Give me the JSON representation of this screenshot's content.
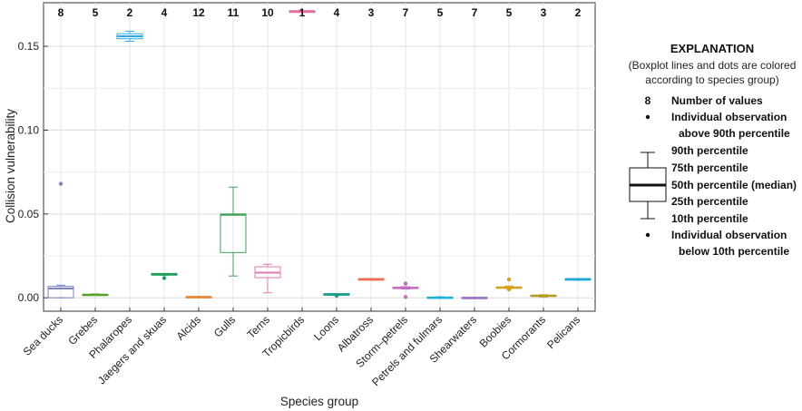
{
  "chart_data": {
    "type": "box",
    "ylabel": "Collision vulnerability",
    "xlabel": "Species group",
    "ylim": [
      -0.008,
      0.176
    ],
    "yticks": [
      0.0,
      0.05,
      0.1,
      0.15
    ],
    "ytick_labels": [
      "0.00",
      "0.05",
      "0.10",
      "0.15"
    ],
    "grid": true,
    "groups": [
      {
        "name": "Sea ducks",
        "n": "8",
        "color": "#7b83c9",
        "p10": 0.0,
        "q1": 0.0,
        "median": 0.0055,
        "q3": 0.0068,
        "p90": 0.0075,
        "outliers": [
          0.068
        ]
      },
      {
        "name": "Grebes",
        "n": "5",
        "color": "#5aa02c",
        "p10": 0.0015,
        "q1": 0.0015,
        "median": 0.0018,
        "q3": 0.0021,
        "p90": 0.0023,
        "outliers": []
      },
      {
        "name": "Phalaropes",
        "n": "2",
        "color": "#29a9e0",
        "p10": 0.153,
        "q1": 0.1545,
        "median": 0.156,
        "q3": 0.1575,
        "p90": 0.159,
        "outliers": []
      },
      {
        "name": "Jaegers and skuas",
        "n": "4",
        "color": "#1f9e5a",
        "p10": 0.0135,
        "q1": 0.0135,
        "median": 0.014,
        "q3": 0.0145,
        "p90": 0.0145,
        "outliers": [
          0.0118
        ]
      },
      {
        "name": "Alcids",
        "n": "12",
        "color": "#e8893a",
        "p10": 0.0004,
        "q1": 0.0005,
        "median": 0.0006,
        "q3": 0.0007,
        "p90": 0.0008,
        "outliers": []
      },
      {
        "name": "Gulls",
        "n": "11",
        "color": "#3aa35a",
        "p10": 0.013,
        "q1": 0.027,
        "median": 0.0495,
        "q3": 0.05,
        "p90": 0.066,
        "outliers": []
      },
      {
        "name": "Terns",
        "n": "10",
        "color": "#e07ab0",
        "p10": 0.003,
        "q1": 0.012,
        "median": 0.015,
        "q3": 0.0185,
        "p90": 0.02,
        "outliers": []
      },
      {
        "name": "Tropicbirds",
        "n": "1",
        "color": "#e8669e",
        "p10": 0.171,
        "q1": 0.171,
        "median": 0.171,
        "q3": 0.171,
        "p90": 0.171,
        "outliers": []
      },
      {
        "name": "Loons",
        "n": "4",
        "color": "#1a9e8f",
        "p10": 0.0015,
        "q1": 0.0015,
        "median": 0.002,
        "q3": 0.0025,
        "p90": 0.0025,
        "outliers": [
          0.0012
        ]
      },
      {
        "name": "Albatross",
        "n": "3",
        "color": "#ef6c5a",
        "p10": 0.0105,
        "q1": 0.0105,
        "median": 0.011,
        "q3": 0.0115,
        "p90": 0.0115,
        "outliers": []
      },
      {
        "name": "Storm–petrels",
        "n": "7",
        "color": "#c66bc2",
        "p10": 0.0052,
        "q1": 0.0055,
        "median": 0.006,
        "q3": 0.0063,
        "p90": 0.0066,
        "outliers": [
          0.0085,
          0.0005
        ]
      },
      {
        "name": "Petrels and fulmars",
        "n": "5",
        "color": "#1fb2d8",
        "p10": 0.0,
        "q1": 0.0,
        "median": 0.0002,
        "q3": 0.0004,
        "p90": 0.0006,
        "outliers": []
      },
      {
        "name": "Shearwaters",
        "n": "7",
        "color": "#a07ac9",
        "p10": 0.0,
        "q1": 0.0,
        "median": 0.0001,
        "q3": 0.0002,
        "p90": 0.0003,
        "outliers": []
      },
      {
        "name": "Boobies",
        "n": "5",
        "color": "#d4a11e",
        "p10": 0.0055,
        "q1": 0.0058,
        "median": 0.006,
        "q3": 0.0065,
        "p90": 0.007,
        "outliers": [
          0.011,
          0.005
        ]
      },
      {
        "name": "Cormorants",
        "n": "3",
        "color": "#b59a22",
        "p10": 0.0005,
        "q1": 0.0008,
        "median": 0.0012,
        "q3": 0.0016,
        "p90": 0.0018,
        "outliers": []
      },
      {
        "name": "Pelicans",
        "n": "2",
        "color": "#1fa9d6",
        "p10": 0.0105,
        "q1": 0.0105,
        "median": 0.011,
        "q3": 0.0115,
        "p90": 0.0115,
        "outliers": []
      }
    ]
  },
  "legend": {
    "title": "EXPLANATION",
    "subtitle_lines": [
      "(Boxplot lines and dots are colored",
      "according to species group)"
    ],
    "count_symbol": "8",
    "count_label": "Number of values",
    "above_label_lines": [
      "Individual observation",
      "above 90th percentile"
    ],
    "p90": "90th percentile",
    "p75": "75th percentile",
    "p50": "50th percentile (median)",
    "p25": "25th percentile",
    "p10": "10th percentile",
    "below_label_lines": [
      "Individual observation",
      "below 10th percentile"
    ]
  }
}
